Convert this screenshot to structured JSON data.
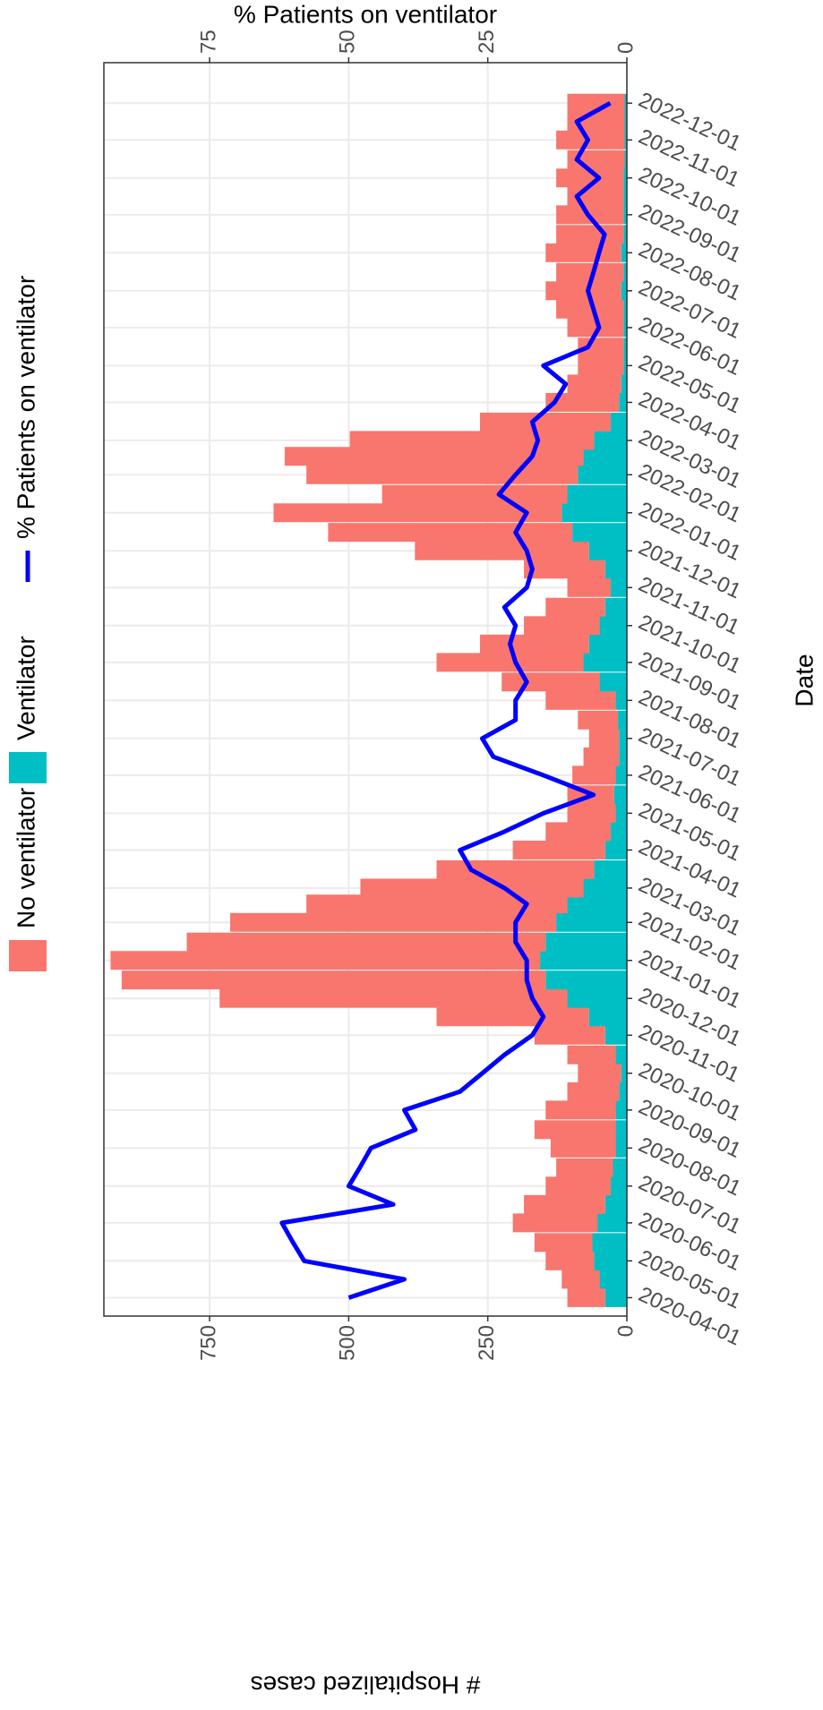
{
  "chart_data": {
    "type": "bar",
    "x_label": "Date",
    "y_label": "# Hospitalized cases",
    "y2_label": "% Patients on ventilator",
    "x": [
      "2020-04-01",
      "2020-04-16",
      "2020-05-01",
      "2020-05-16",
      "2020-06-01",
      "2020-06-16",
      "2020-07-01",
      "2020-07-16",
      "2020-08-01",
      "2020-08-16",
      "2020-09-01",
      "2020-09-16",
      "2020-10-01",
      "2020-10-16",
      "2020-11-01",
      "2020-11-16",
      "2020-12-01",
      "2020-12-16",
      "2021-01-01",
      "2021-01-16",
      "2021-02-01",
      "2021-02-16",
      "2021-03-01",
      "2021-03-16",
      "2021-04-01",
      "2021-04-16",
      "2021-05-01",
      "2021-05-16",
      "2021-06-01",
      "2021-06-16",
      "2021-07-01",
      "2021-07-16",
      "2021-08-01",
      "2021-08-16",
      "2021-09-01",
      "2021-09-16",
      "2021-10-01",
      "2021-10-16",
      "2021-11-01",
      "2021-11-16",
      "2021-12-01",
      "2021-12-16",
      "2022-01-01",
      "2022-01-16",
      "2022-02-01",
      "2022-02-16",
      "2022-03-01",
      "2022-03-16",
      "2022-04-01",
      "2022-04-16",
      "2022-05-01",
      "2022-05-16",
      "2022-06-01",
      "2022-06-16",
      "2022-07-01",
      "2022-07-16",
      "2022-08-01",
      "2022-08-16",
      "2022-09-01",
      "2022-09-16",
      "2022-10-01",
      "2022-10-16",
      "2022-11-01",
      "2022-11-16",
      "2022-12-01"
    ],
    "series": [
      {
        "name": "No ventilator",
        "color": "#F8766D",
        "values": [
          68,
          68,
          87,
          104,
          152,
          146,
          117,
          102,
          117,
          146,
          126,
          93,
          78,
          87,
          127,
          274,
          625,
          762,
          772,
          645,
          586,
          469,
          401,
          283,
          166,
          117,
          87,
          84,
          78,
          64,
          54,
          72,
          126,
          176,
          264,
          196,
          136,
          107,
          78,
          146,
          313,
          439,
          518,
          333,
          488,
          537,
          439,
          235,
          132,
          97,
          82,
          82,
          101,
          121,
          136,
          121,
          136,
          121,
          121,
          101,
          121,
          103,
          123,
          103,
          103
        ]
      },
      {
        "name": "Ventilator",
        "color": "#00BFC4",
        "values": [
          39,
          49,
          59,
          62,
          53,
          39,
          29,
          25,
          20,
          20,
          20,
          14,
          10,
          20,
          39,
          68,
          107,
          146,
          156,
          146,
          127,
          107,
          78,
          59,
          39,
          29,
          20,
          23,
          20,
          14,
          14,
          16,
          20,
          49,
          78,
          68,
          49,
          39,
          29,
          39,
          68,
          98,
          117,
          107,
          88,
          78,
          59,
          29,
          14,
          10,
          6,
          6,
          6,
          6,
          10,
          6,
          10,
          6,
          6,
          6,
          6,
          4,
          4,
          4,
          4
        ]
      },
      {
        "name": "% Patients on ventilator",
        "color": "#0000FF",
        "axis": "y2",
        "values": [
          50,
          40,
          58,
          60,
          62,
          42,
          50,
          48,
          46,
          38,
          40,
          30,
          26,
          22,
          17,
          15,
          17,
          18,
          18,
          20,
          20,
          18,
          22,
          28,
          30,
          22,
          15,
          6,
          15,
          24,
          26,
          20,
          20,
          18,
          20,
          21,
          20,
          22,
          18,
          17,
          18,
          20,
          18,
          23,
          20,
          17,
          16,
          17,
          13,
          11,
          15,
          7,
          5,
          6,
          7,
          6,
          5,
          4,
          7,
          9,
          5,
          9,
          7,
          9,
          3
        ]
      }
    ],
    "xlim": [
      "2020-03-17",
      "2023-01-03"
    ],
    "xticks": [
      "2020-04-01",
      "2020-05-01",
      "2020-06-01",
      "2020-07-01",
      "2020-08-01",
      "2020-09-01",
      "2020-10-01",
      "2020-11-01",
      "2020-12-01",
      "2021-01-01",
      "2021-02-01",
      "2021-03-01",
      "2021-04-01",
      "2021-05-01",
      "2021-06-01",
      "2021-07-01",
      "2021-08-01",
      "2021-09-01",
      "2021-10-01",
      "2021-11-01",
      "2021-12-01",
      "2022-01-01",
      "2022-02-01",
      "2022-03-01",
      "2022-04-01",
      "2022-05-01",
      "2022-06-01",
      "2022-07-01",
      "2022-08-01",
      "2022-09-01",
      "2022-10-01",
      "2022-11-01",
      "2022-12-01"
    ],
    "ylim": [
      0,
      940
    ],
    "yticks": [
      0,
      250,
      500,
      750
    ],
    "y2lim": [
      0,
      94
    ],
    "y2ticks": [
      0,
      25,
      50,
      75
    ],
    "grid": true,
    "legend": "top"
  }
}
